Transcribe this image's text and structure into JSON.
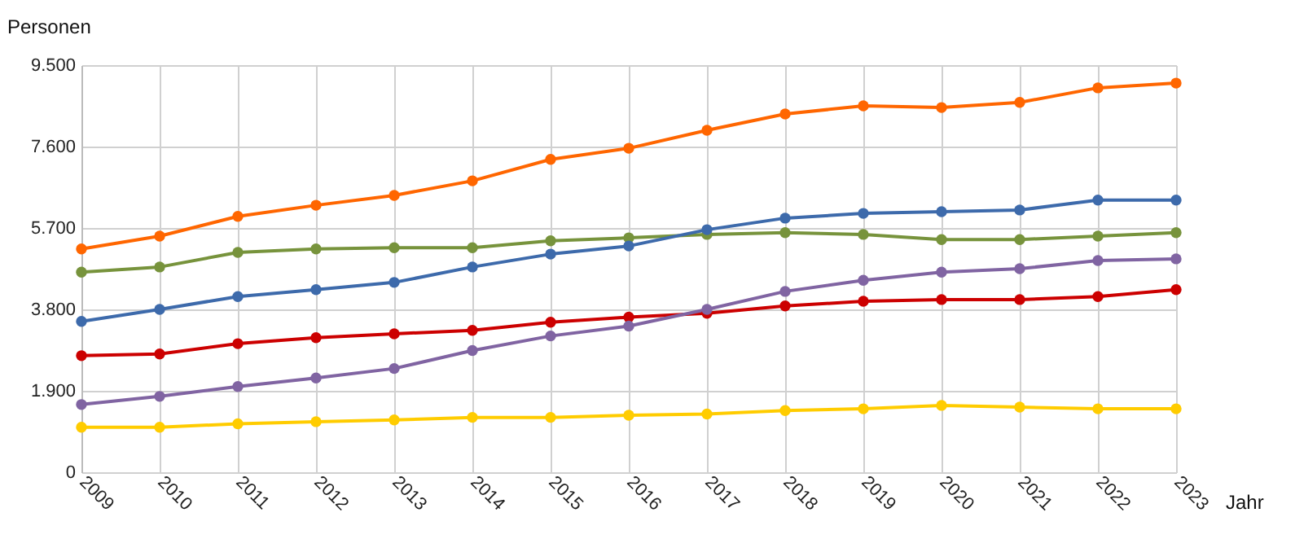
{
  "chart_data": {
    "type": "line",
    "xlabel": "Jahr",
    "ylabel": "Personen",
    "categories": [
      "2009",
      "2010",
      "2011",
      "2012",
      "2013",
      "2014",
      "2015",
      "2016",
      "2017",
      "2018",
      "2019",
      "2020",
      "2021",
      "2022",
      "2023"
    ],
    "ylim": [
      0,
      9500
    ],
    "yticks": [
      {
        "value": 0,
        "label": "0"
      },
      {
        "value": 1900,
        "label": "1.900"
      },
      {
        "value": 3800,
        "label": "3.800"
      },
      {
        "value": 5700,
        "label": "5.700"
      },
      {
        "value": 7600,
        "label": "7.600"
      },
      {
        "value": 9500,
        "label": "9.500"
      }
    ],
    "grid": true,
    "legend": false,
    "marker": "circle",
    "line_style": "solid",
    "series": [
      {
        "color": "#ff6600",
        "values": [
          5210,
          5510,
          5970,
          6230,
          6460,
          6800,
          7300,
          7560,
          7980,
          8360,
          8550,
          8510,
          8630,
          8970,
          9080
        ]
      },
      {
        "color": "#77933c",
        "values": [
          4670,
          4790,
          5130,
          5210,
          5240,
          5240,
          5400,
          5470,
          5550,
          5590,
          5550,
          5430,
          5430,
          5510,
          5590
        ]
      },
      {
        "color": "#3d6aab",
        "values": [
          3520,
          3800,
          4100,
          4260,
          4430,
          4790,
          5090,
          5280,
          5660,
          5930,
          6040,
          6080,
          6120,
          6350,
          6350
        ]
      },
      {
        "color": "#cc0000",
        "values": [
          2720,
          2760,
          3000,
          3140,
          3230,
          3310,
          3500,
          3620,
          3710,
          3880,
          3990,
          4030,
          4030,
          4100,
          4260
        ]
      },
      {
        "color": "#8064a2",
        "values": [
          1580,
          1770,
          2000,
          2200,
          2420,
          2840,
          3180,
          3410,
          3800,
          4220,
          4480,
          4670,
          4750,
          4940,
          4980
        ]
      },
      {
        "color": "#ffcc00",
        "values": [
          1050,
          1050,
          1130,
          1180,
          1220,
          1280,
          1280,
          1330,
          1360,
          1440,
          1480,
          1560,
          1520,
          1480,
          1480
        ]
      }
    ]
  }
}
